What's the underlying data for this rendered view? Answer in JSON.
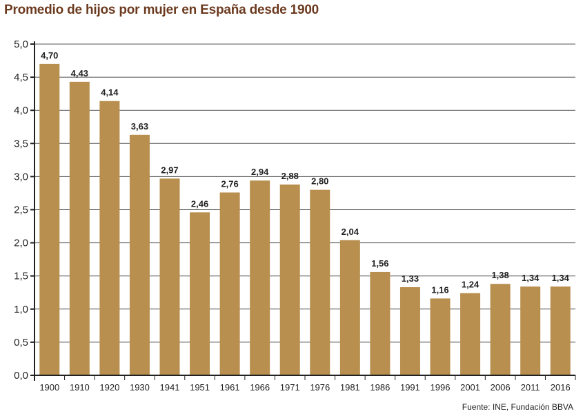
{
  "chart_data": {
    "type": "bar",
    "title": "Promedio de hijos por mujer en España desde 1900",
    "source": "Fuente: INE, Fundación BBVA",
    "categories": [
      "1900",
      "1910",
      "1920",
      "1930",
      "1941",
      "1951",
      "1961",
      "1966",
      "1971",
      "1976",
      "1981",
      "1986",
      "1991",
      "1996",
      "2001",
      "2006",
      "2011",
      "2016"
    ],
    "values": [
      4.7,
      4.43,
      4.14,
      3.63,
      2.97,
      2.46,
      2.76,
      2.94,
      2.88,
      2.8,
      2.04,
      1.56,
      1.33,
      1.16,
      1.24,
      1.38,
      1.34,
      1.34
    ],
    "value_labels": [
      "4,70",
      "4,43",
      "4,14",
      "3,63",
      "2,97",
      "2,46",
      "2,76",
      "2,94",
      "2,88",
      "2,80",
      "2,04",
      "1,56",
      "1,33",
      "1,16",
      "1,24",
      "1,38",
      "1,34",
      "1,34"
    ],
    "ylim": [
      0,
      5
    ],
    "yticks": [
      0,
      0.5,
      1,
      1.5,
      2,
      2.5,
      3,
      3.5,
      4,
      4.5,
      5
    ],
    "ytick_labels": [
      "0,0",
      "0,5",
      "1,0",
      "1,5",
      "2,0",
      "2,5",
      "3,0",
      "3,5",
      "4,0",
      "4,5",
      "5,0"
    ],
    "xlabel": "",
    "ylabel": "",
    "grid": true,
    "colors": {
      "bar": "#b88f4f",
      "title": "#6b3a1f",
      "grid": "#555555"
    }
  }
}
